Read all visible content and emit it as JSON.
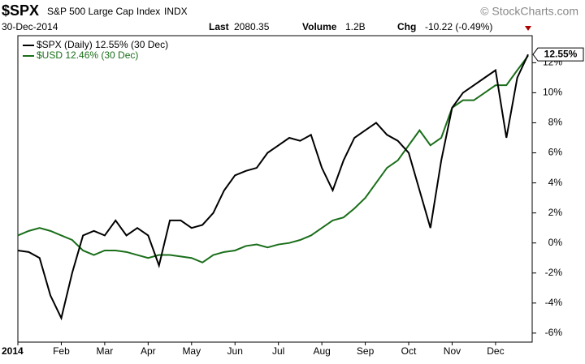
{
  "header": {
    "symbol": "$SPX",
    "name": "S&P 500 Large Cap Index",
    "exchange": "INDX",
    "source": "© StockCharts.com",
    "date": "30-Dec-2014",
    "last_label": "Last",
    "last": "2080.35",
    "volume_label": "Volume",
    "volume": "1.2B",
    "chg_label": "Chg",
    "chg": "-10.22 (-0.49%)"
  },
  "chart_data": {
    "type": "line",
    "categories": [
      "2014",
      null,
      null,
      null,
      "Feb",
      null,
      null,
      null,
      "Mar",
      null,
      null,
      null,
      "Apr",
      null,
      null,
      null,
      "May",
      null,
      null,
      null,
      "Jun",
      null,
      null,
      null,
      "Jul",
      null,
      null,
      null,
      "Aug",
      null,
      null,
      null,
      "Sep",
      null,
      null,
      null,
      "Oct",
      null,
      null,
      null,
      "Nov",
      null,
      null,
      null,
      "Dec",
      null,
      null,
      null
    ],
    "series": [
      {
        "name": "$SPX (Daily) 12.55% (30 Dec)",
        "color": "#000000",
        "values": [
          -0.5,
          -0.6,
          -1.0,
          -3.5,
          -5.0,
          -2.0,
          0.5,
          0.8,
          0.5,
          1.5,
          0.5,
          1.0,
          0.5,
          -1.5,
          1.5,
          1.5,
          1.0,
          1.2,
          2.0,
          3.5,
          4.5,
          4.8,
          5.0,
          6.0,
          6.5,
          7.0,
          6.8,
          7.2,
          5.0,
          3.5,
          5.5,
          7.0,
          7.5,
          8.0,
          7.2,
          6.8,
          6.0,
          3.5,
          1.0,
          5.5,
          9.0,
          10.0,
          10.5,
          11.0,
          11.5,
          7.0,
          11.0,
          12.55
        ],
        "end_label": {
          "value": 12.55,
          "label": "12.55%"
        }
      },
      {
        "name": "$USD 12.46% (30 Dec)",
        "color": "#1a6e1a",
        "values": [
          0.5,
          0.8,
          1.0,
          0.8,
          0.5,
          0.2,
          -0.5,
          -0.8,
          -0.5,
          -0.5,
          -0.6,
          -0.8,
          -1.0,
          -0.8,
          -0.8,
          -0.9,
          -1.0,
          -1.3,
          -0.8,
          -0.6,
          -0.5,
          -0.2,
          -0.1,
          -0.3,
          -0.1,
          0.0,
          0.2,
          0.5,
          1.0,
          1.5,
          1.7,
          2.3,
          3.0,
          4.0,
          5.0,
          5.5,
          6.5,
          7.5,
          6.5,
          7.0,
          9.0,
          9.5,
          9.5,
          10.0,
          10.5,
          10.5,
          11.5,
          12.46
        ]
      }
    ],
    "ylim": [
      -6.6,
      13.8
    ],
    "yticks": [
      {
        "value": -6,
        "label": "-6%"
      },
      {
        "value": -4,
        "label": "-4%"
      },
      {
        "value": -2,
        "label": "-2%"
      },
      {
        "value": 0,
        "label": "0%"
      },
      {
        "value": 2,
        "label": "2%"
      },
      {
        "value": 4,
        "label": "4%"
      },
      {
        "value": 6,
        "label": "6%"
      },
      {
        "value": 8,
        "label": "8%"
      },
      {
        "value": 10,
        "label": "10%"
      },
      {
        "value": 12,
        "label": "12%"
      }
    ],
    "grid": false
  }
}
